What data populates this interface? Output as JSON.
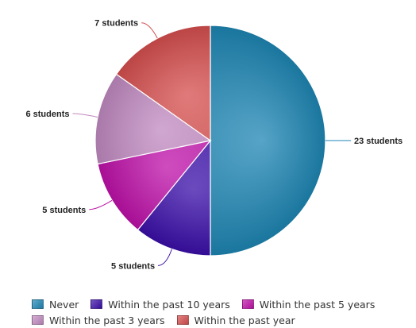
{
  "chart_data": {
    "type": "pie",
    "title": "",
    "slices": [
      {
        "name": "Never",
        "value": 23,
        "label": "23 students",
        "color": "#1E86B4"
      },
      {
        "name": "Within the past 10 years",
        "value": 5,
        "label": "5 students",
        "color": "#3A0EA8"
      },
      {
        "name": "Within the past 5 years",
        "value": 5,
        "label": "5 students",
        "color": "#BE10A8"
      },
      {
        "name": "Within the past 3 years",
        "value": 6,
        "label": "6 students",
        "color": "#C08AC0"
      },
      {
        "name": "Within the past year",
        "value": 7,
        "label": "7 students",
        "color": "#D64E4E"
      }
    ],
    "legend_position": "bottom"
  }
}
